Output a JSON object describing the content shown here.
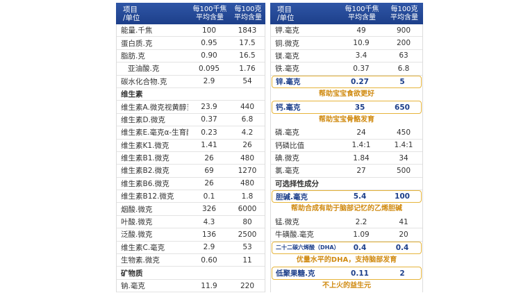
{
  "header": {
    "item": "项目",
    "unit": "/单位",
    "col1": "每100千焦",
    "col1b": "平均含量",
    "col2": "每100克",
    "col2b": "平均含量"
  },
  "left": [
    {
      "name": "能量.千焦",
      "v1": "100",
      "v2": "1843"
    },
    {
      "name": "蛋白质.克",
      "v1": "0.95",
      "v2": "17.5"
    },
    {
      "name": "脂肪.克",
      "v1": "0.90",
      "v2": "16.5"
    },
    {
      "name": "亚油酸.克",
      "v1": "0.095",
      "v2": "1.76",
      "indent": true
    },
    {
      "name": "碳水化合物.克",
      "v1": "2.9",
      "v2": "54"
    },
    {
      "name": "维生素",
      "section": true
    },
    {
      "name": "维生素A.微克视黄醇当量",
      "v1": "23.9",
      "v2": "440"
    },
    {
      "name": "维生素D.微克",
      "v1": "0.37",
      "v2": "6.8"
    },
    {
      "name": "维生素E.毫克α-生育酚当量",
      "v1": "0.23",
      "v2": "4.2"
    },
    {
      "name": "维生素K1.微克",
      "v1": "1.41",
      "v2": "26"
    },
    {
      "name": "维生素B1.微克",
      "v1": "26",
      "v2": "480"
    },
    {
      "name": "维生素B2.微克",
      "v1": "69",
      "v2": "1270"
    },
    {
      "name": "维生素B6.微克",
      "v1": "26",
      "v2": "480"
    },
    {
      "name": "维生素B12.微克",
      "v1": "0.1",
      "v2": "1.8"
    },
    {
      "name": "烟酸.微克",
      "v1": "326",
      "v2": "6000"
    },
    {
      "name": "叶酸.微克",
      "v1": "4.3",
      "v2": "80"
    },
    {
      "name": "泛酸.微克",
      "v1": "136",
      "v2": "2500"
    },
    {
      "name": "维生素C.毫克",
      "v1": "2.9",
      "v2": "53"
    },
    {
      "name": "生物素.微克",
      "v1": "0.60",
      "v2": "11"
    },
    {
      "name": "矿物质",
      "section": true
    },
    {
      "name": "钠.毫克",
      "v1": "11.9",
      "v2": "220"
    }
  ],
  "right": [
    {
      "name": "钾.毫克",
      "v1": "49",
      "v2": "900"
    },
    {
      "name": "铜.微克",
      "v1": "10.9",
      "v2": "200"
    },
    {
      "name": "镁.毫克",
      "v1": "3.4",
      "v2": "63"
    },
    {
      "name": "铁.毫克",
      "v1": "0.37",
      "v2": "6.8"
    },
    {
      "name": "锌.毫克",
      "v1": "0.27",
      "v2": "5",
      "hl": true
    },
    {
      "caption": "帮助宝宝食欲更好"
    },
    {
      "name": "钙.毫克",
      "v1": "35",
      "v2": "650",
      "hl": true
    },
    {
      "caption": "帮助宝宝骨骼发育"
    },
    {
      "name": "磷.毫克",
      "v1": "24",
      "v2": "450"
    },
    {
      "name": "钙磷比值",
      "v1": "1.4:1",
      "v2": "1.4:1"
    },
    {
      "name": "碘.微克",
      "v1": "1.84",
      "v2": "34"
    },
    {
      "name": "氯.毫克",
      "v1": "27",
      "v2": "500"
    },
    {
      "name": "可选择性成分",
      "section": true
    },
    {
      "name": "胆碱.毫克",
      "v1": "5.4",
      "v2": "100",
      "hl": true
    },
    {
      "caption": "帮助合成有助于脑部记忆的乙烯胆碱"
    },
    {
      "name": "锰.微克",
      "v1": "2.2",
      "v2": "41"
    },
    {
      "name": "牛磺酸.毫克",
      "v1": "1.09",
      "v2": "20"
    },
    {
      "name": "二十二碳六烯酸（DHA）%总脂肪酸",
      "v1": "0.4",
      "v2": "0.4",
      "hl": true,
      "long": true
    },
    {
      "caption": "优量水平的DHA，支持脑部发育"
    },
    {
      "name": "低聚果糖.克",
      "v1": "0.11",
      "v2": "2",
      "hl": true
    },
    {
      "caption": "不上火的益生元"
    }
  ]
}
